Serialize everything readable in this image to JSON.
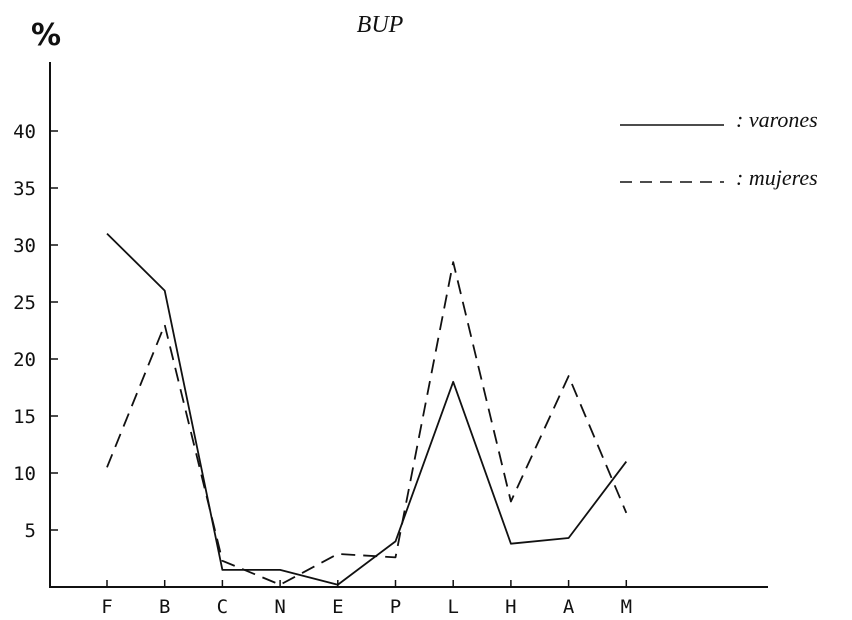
{
  "chart_data": {
    "type": "line",
    "title": "BUP",
    "ylabel": "%",
    "xlabel": "",
    "categories": [
      "F",
      "B",
      "C",
      "N",
      "E",
      "P",
      "L",
      "H",
      "A",
      "M"
    ],
    "ylim": [
      0,
      45
    ],
    "yticks": [
      5,
      10,
      15,
      20,
      25,
      30,
      35,
      40
    ],
    "grid": false,
    "legend": "top-right",
    "series": [
      {
        "name": ": varones",
        "style": "solid",
        "values": [
          31,
          26,
          1.5,
          1.5,
          0.2,
          4,
          18,
          3.8,
          4.3,
          11
        ]
      },
      {
        "name": ": mujeres",
        "style": "dashed",
        "values": [
          10.5,
          23,
          2.3,
          0.2,
          2.9,
          2.6,
          28.5,
          7.5,
          18.5,
          6.5
        ]
      }
    ],
    "colors": {
      "line": "#111111",
      "axis": "#111111"
    }
  }
}
